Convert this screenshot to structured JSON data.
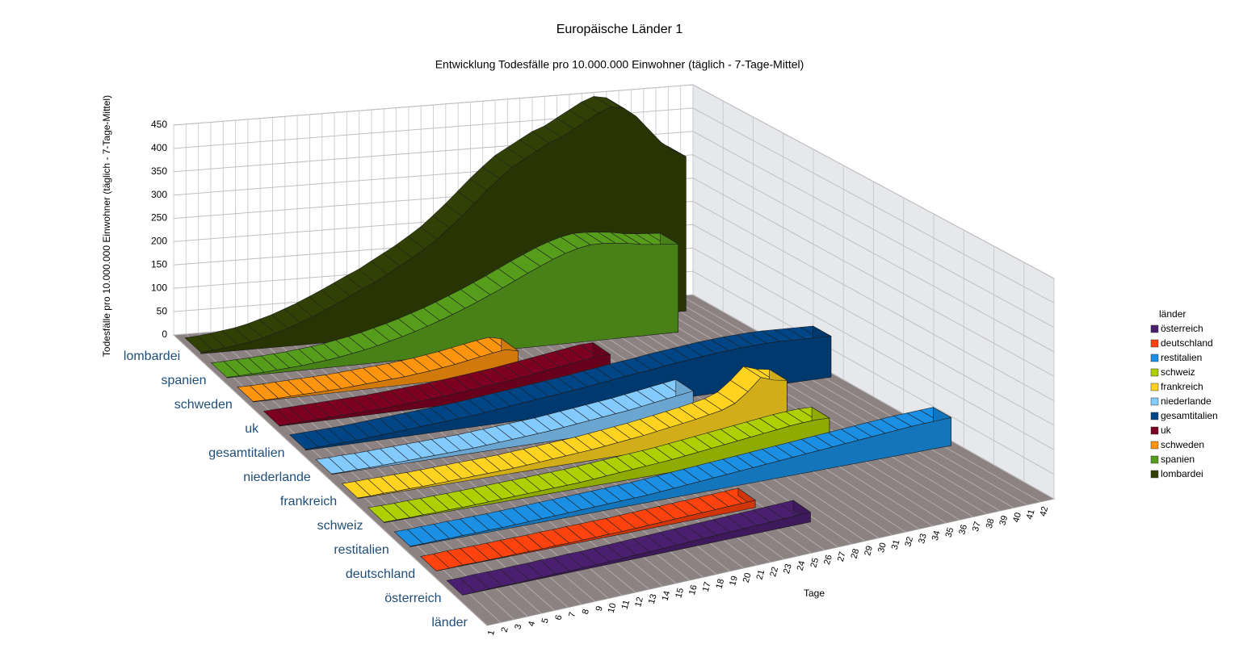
{
  "chart_data": {
    "type": "ribbon3d",
    "title": "Europäische Länder 1",
    "subtitle": "Entwicklung Todesfälle pro 10.000.000 Einwohner (täglich - 7-Tage-Mittel)",
    "ylabel": "Todesfälle pro 10.000.000 Einwohner (täglich - 7-Tage-Mittel)",
    "xlabel": "Tage",
    "zlabel": "länder",
    "legend_title": "länder",
    "legend": "right",
    "grid": true,
    "ylim": [
      0,
      450
    ],
    "yticks": [
      0,
      50,
      100,
      150,
      200,
      250,
      300,
      350,
      400,
      450
    ],
    "categories": [
      1,
      2,
      3,
      4,
      5,
      6,
      7,
      8,
      9,
      10,
      11,
      12,
      13,
      14,
      15,
      16,
      17,
      18,
      19,
      20,
      21,
      22,
      23,
      24,
      25,
      26,
      27,
      28,
      29,
      30,
      31,
      32,
      33,
      34,
      35,
      36,
      37,
      38,
      39,
      40,
      41,
      42
    ],
    "series": [
      {
        "name": "österreich",
        "color": "#4b1f6f",
        "values": [
          0,
          0,
          1,
          1,
          1,
          2,
          2,
          3,
          3,
          4,
          4,
          5,
          6,
          7,
          8,
          9,
          10,
          11,
          12,
          13,
          14,
          15,
          16,
          17,
          18,
          19,
          20,
          null,
          null,
          null,
          null,
          null,
          null,
          null,
          null,
          null,
          null,
          null,
          null,
          null,
          null,
          null
        ]
      },
      {
        "name": "deutschland",
        "color": "#ff420e",
        "values": [
          0,
          0,
          1,
          1,
          1,
          1,
          2,
          2,
          2,
          3,
          3,
          4,
          4,
          5,
          5,
          6,
          7,
          8,
          9,
          10,
          11,
          12,
          13,
          14,
          15,
          null,
          null,
          null,
          null,
          null,
          null,
          null,
          null,
          null,
          null,
          null,
          null,
          null,
          null,
          null,
          null,
          null
        ]
      },
      {
        "name": "restitalien",
        "color": "#1a8fe3",
        "values": [
          1,
          1,
          2,
          2,
          3,
          3,
          4,
          4,
          5,
          6,
          7,
          8,
          9,
          10,
          11,
          12,
          13,
          14,
          15,
          17,
          19,
          21,
          23,
          25,
          27,
          29,
          31,
          33,
          35,
          37,
          39,
          41,
          43,
          45,
          47,
          49,
          51,
          53,
          55,
          56,
          57,
          58
        ]
      },
      {
        "name": "schweiz",
        "color": "#aecf00",
        "values": [
          1,
          1,
          1,
          2,
          2,
          3,
          3,
          4,
          5,
          6,
          7,
          8,
          9,
          10,
          11,
          12,
          14,
          16,
          18,
          20,
          22,
          24,
          26,
          29,
          32,
          35,
          38,
          41,
          44,
          47,
          50,
          53,
          55,
          56,
          55,
          null,
          null,
          null,
          null,
          null,
          null,
          null
        ]
      },
      {
        "name": "frankreich",
        "color": "#ffd320",
        "values": [
          1,
          1,
          2,
          2,
          3,
          3,
          4,
          5,
          6,
          7,
          8,
          9,
          10,
          12,
          14,
          16,
          18,
          20,
          22,
          25,
          28,
          31,
          34,
          38,
          42,
          46,
          50,
          55,
          60,
          70,
          90,
          115,
          105,
          100,
          null,
          null,
          null,
          null,
          null,
          null,
          null,
          null
        ]
      },
      {
        "name": "niederlande",
        "color": "#83caff",
        "values": [
          1,
          1,
          2,
          2,
          3,
          4,
          5,
          6,
          7,
          8,
          9,
          10,
          12,
          14,
          16,
          18,
          20,
          22,
          25,
          28,
          31,
          34,
          37,
          40,
          44,
          48,
          52,
          56,
          60,
          null,
          null,
          null,
          null,
          null,
          null,
          null,
          null,
          null,
          null,
          null,
          null,
          null
        ]
      },
      {
        "name": "gesamtitalien",
        "color": "#004586",
        "values": [
          2,
          3,
          4,
          5,
          6,
          8,
          10,
          12,
          14,
          16,
          18,
          20,
          22,
          24,
          27,
          30,
          33,
          36,
          39,
          42,
          45,
          48,
          51,
          55,
          58,
          62,
          65,
          68,
          72,
          75,
          78,
          81,
          84,
          86,
          88,
          89,
          90,
          90,
          89,
          88,
          87,
          86
        ]
      },
      {
        "name": "uk",
        "color": "#7e0021",
        "values": [
          1,
          2,
          3,
          4,
          5,
          6,
          7,
          8,
          9,
          11,
          13,
          15,
          17,
          19,
          22,
          25,
          28,
          31,
          34,
          38,
          42,
          46,
          50,
          54,
          58,
          62,
          63,
          null,
          null,
          null,
          null,
          null,
          null,
          null,
          null,
          null,
          null,
          null,
          null,
          null,
          null,
          null
        ]
      },
      {
        "name": "schweden",
        "color": "#ff950e",
        "values": [
          1,
          1,
          2,
          3,
          4,
          5,
          6,
          7,
          9,
          11,
          13,
          15,
          17,
          20,
          23,
          27,
          31,
          36,
          41,
          46,
          50,
          44,
          null,
          null,
          null,
          null,
          null,
          null,
          null,
          null,
          null,
          null,
          null,
          null,
          null,
          null,
          null,
          null,
          null,
          null,
          null,
          null
        ]
      },
      {
        "name": "spanien",
        "color": "#579d1c",
        "values": [
          1,
          2,
          3,
          4,
          6,
          8,
          10,
          13,
          16,
          20,
          25,
          30,
          36,
          43,
          50,
          58,
          67,
          76,
          86,
          97,
          108,
          120,
          132,
          145,
          158,
          170,
          182,
          192,
          200,
          205,
          205,
          203,
          200,
          195,
          192,
          190,
          188,
          null,
          null,
          null,
          null,
          null
        ]
      },
      {
        "name": "lombardei",
        "color": "#314004",
        "values": [
          3,
          5,
          8,
          12,
          16,
          22,
          30,
          38,
          48,
          58,
          70,
          82,
          95,
          108,
          120,
          135,
          150,
          165,
          182,
          200,
          222,
          245,
          270,
          295,
          318,
          340,
          355,
          370,
          385,
          395,
          410,
          425,
          440,
          450,
          445,
          425,
          395,
          365,
          345,
          330,
          null,
          null
        ]
      }
    ]
  }
}
